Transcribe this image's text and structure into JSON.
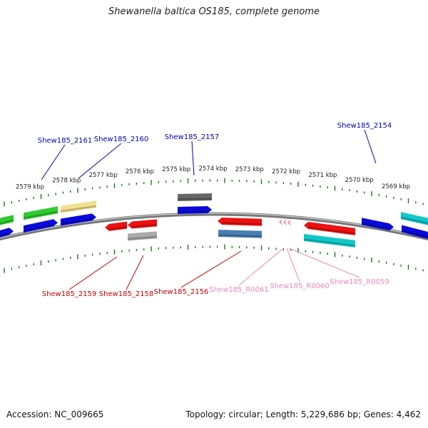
{
  "title": "Shewanella baltica OS185, complete genome",
  "footer": {
    "accession": "Accession: NC_009665",
    "topology": "Topology: circular; Length: 5,229,686 bp; Genes: 4,462"
  },
  "colors": {
    "backbone": "#888888",
    "tick": "#1a7a1a",
    "label_forward": "#0000c0",
    "label_reverse": "#cc0000",
    "label_rna": "#ee88bb"
  },
  "kbp_labels": [
    "2579 kbp",
    "2578 kbp",
    "2577 kbp",
    "2576 kbp",
    "2575 kbp",
    "2574 kbp",
    "2573 kbp",
    "2572 kbp",
    "2571 kbp",
    "2570 kbp",
    "2569 kbp"
  ],
  "genes_top": [
    {
      "color": "#2ecc2e",
      "lane": 0,
      "dir": "none",
      "from": -10,
      "to": 19
    },
    {
      "color": "#2ecc2e",
      "lane": 0,
      "dir": "none",
      "from": 33,
      "to": 81
    },
    {
      "color": "#f0e090",
      "lane": 0,
      "dir": "none",
      "from": 85,
      "to": 135
    },
    {
      "color": "#666666",
      "lane": 0,
      "dir": "none",
      "from": 249,
      "to": 297
    },
    {
      "color": "#10c8c8",
      "lane": 0,
      "dir": "none",
      "from": 562,
      "to": 605
    },
    {
      "color": "#0a0adc",
      "lane": 1,
      "dir": "right",
      "from": -10,
      "to": 19
    },
    {
      "color": "#0a0adc",
      "lane": 1,
      "dir": "right",
      "from": 33,
      "to": 81
    },
    {
      "color": "#0a0adc",
      "lane": 1,
      "dir": "right",
      "from": 85,
      "to": 135
    },
    {
      "color": "#0a0adc",
      "lane": 1,
      "dir": "right",
      "from": 249,
      "to": 297
    },
    {
      "color": "#0a0adc",
      "lane": 1,
      "dir": "right",
      "from": 507,
      "to": 552
    },
    {
      "color": "#0a0adc",
      "lane": 1,
      "dir": "right",
      "from": 563,
      "to": 605
    }
  ],
  "genes_bottom": [
    {
      "color": "#ee1111",
      "lane": 0,
      "dir": "left",
      "from": 147,
      "to": 178
    },
    {
      "color": "#ee1111",
      "lane": 0,
      "dir": "left",
      "from": 179,
      "to": 220
    },
    {
      "color": "#ee1111",
      "lane": 0,
      "dir": "left",
      "from": 305,
      "to": 367
    },
    {
      "color": "#ee1111",
      "lane": 0,
      "dir": "left",
      "from": 426,
      "to": 498
    },
    {
      "color": "#aaaaaa",
      "lane": 1,
      "dir": "none",
      "from": 179,
      "to": 220
    },
    {
      "color": "#4a7fb5",
      "lane": 1,
      "dir": "none",
      "from": 306,
      "to": 367
    },
    {
      "color": "#10c8c8",
      "lane": 1,
      "dir": "none",
      "from": 426,
      "to": 498
    }
  ],
  "rna_chevrons": [
    391,
    397,
    403
  ],
  "labels_top": [
    {
      "text": "Shew185_2161",
      "color": "#0000c0"
    },
    {
      "text": "Shew185_2160",
      "color": "#0000c0"
    },
    {
      "text": "Shew185_2157",
      "color": "#0000c0"
    },
    {
      "text": "Shew185_2154",
      "color": "#0000c0"
    }
  ],
  "labels_bottom": [
    {
      "text": "Shew185_2159",
      "color": "#cc0000"
    },
    {
      "text": "Shew185_2158",
      "color": "#cc0000"
    },
    {
      "text": "Shew185_2156",
      "color": "#cc0000"
    },
    {
      "text": "Shew185_R0061",
      "color": "#ee88bb"
    },
    {
      "text": "Shew185_R0060",
      "color": "#ee88bb"
    },
    {
      "text": "Shew185_R0059",
      "color": "#ee88bb"
    }
  ]
}
